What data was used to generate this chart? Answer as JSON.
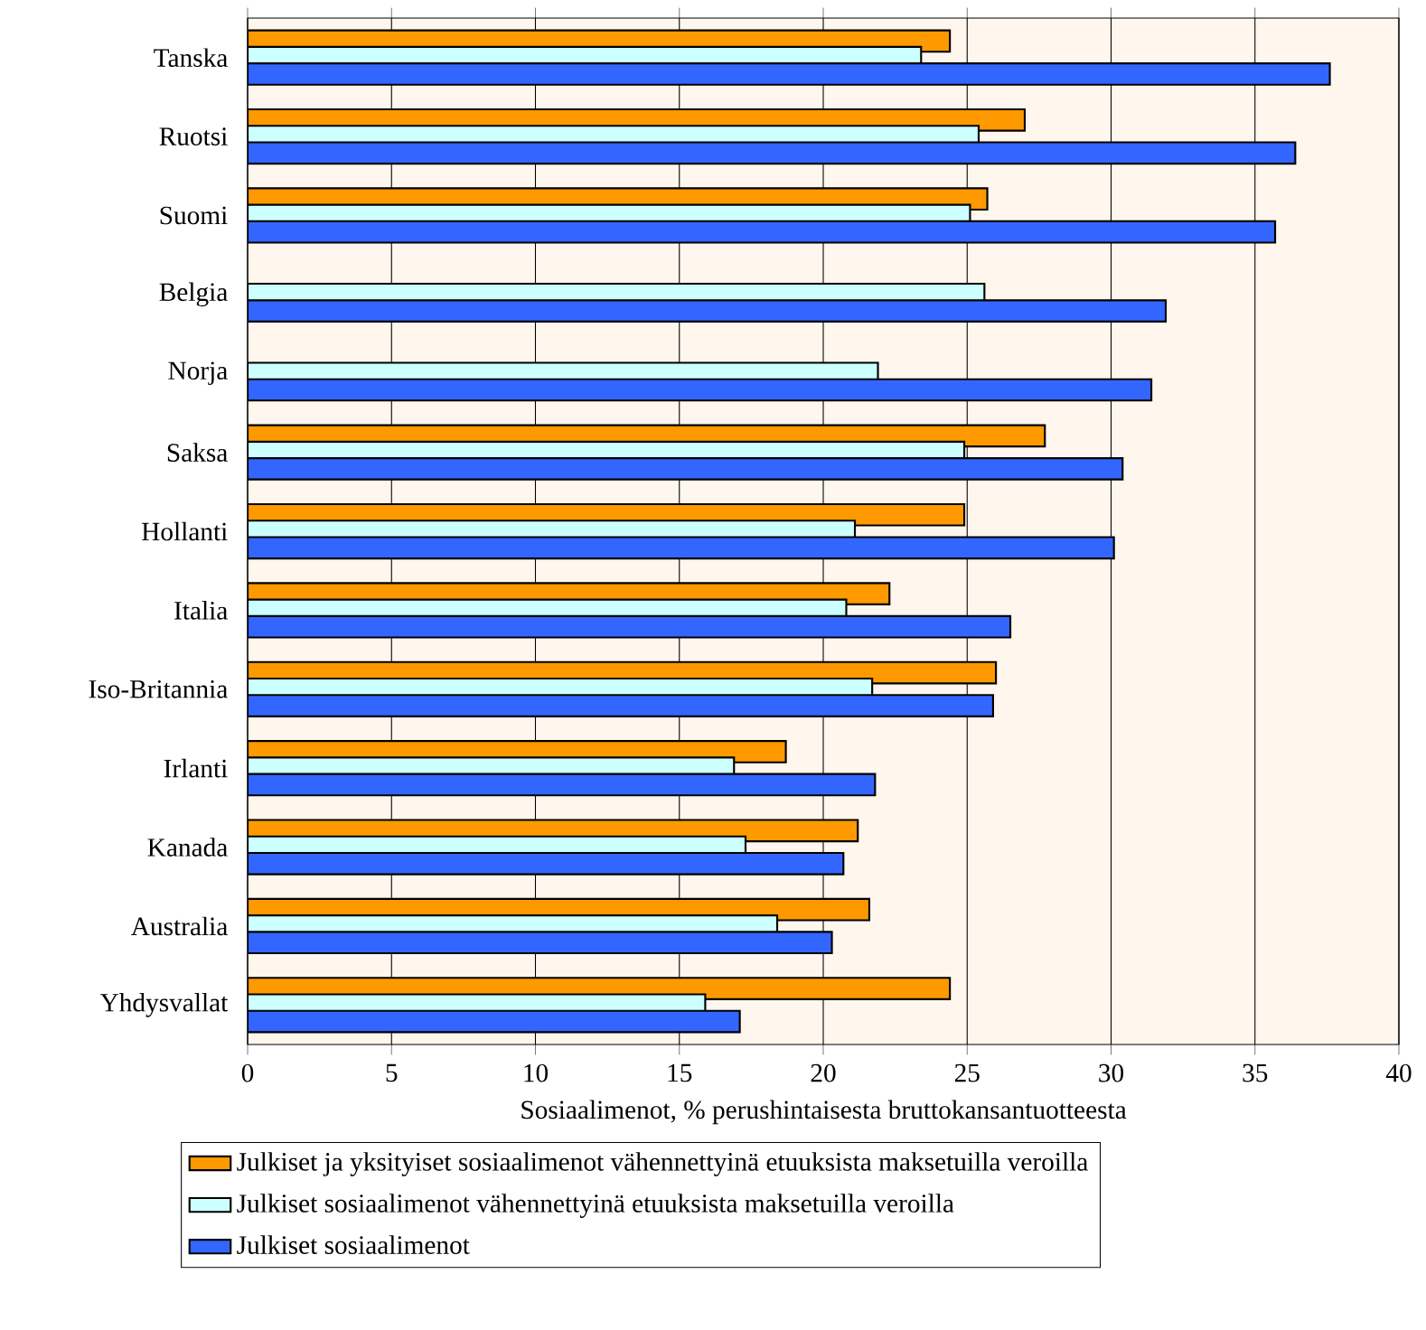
{
  "chart_data": {
    "type": "bar",
    "orientation": "horizontal",
    "xlabel": "Sosiaalimenot, % perushintaisesta bruttokansantuotteesta",
    "categories": [
      "Tanska",
      "Ruotsi",
      "Suomi",
      "Belgia",
      "Norja",
      "Saksa",
      "Hollanti",
      "Italia",
      "Iso-Britannia",
      "Irlanti",
      "Kanada",
      "Australia",
      "Yhdysvallat"
    ],
    "series": [
      {
        "name": "Julkiset ja yksityiset sosiaalimenot vähennettyinä etuuksista maksetuilla veroilla",
        "color": "#ff9900",
        "values": [
          24.4,
          27.0,
          25.7,
          null,
          null,
          27.7,
          24.9,
          22.3,
          26.0,
          18.7,
          21.2,
          21.6,
          24.4
        ]
      },
      {
        "name": "Julkiset sosiaalimenot vähennettyinä etuuksista maksetuilla veroilla",
        "color": "#ccffff",
        "values": [
          23.4,
          25.4,
          25.1,
          25.6,
          21.9,
          24.9,
          21.1,
          20.8,
          21.7,
          16.9,
          17.3,
          18.4,
          15.9
        ]
      },
      {
        "name": "Julkiset sosiaalimenot",
        "color": "#3366ff",
        "values": [
          37.6,
          36.4,
          35.7,
          31.9,
          31.4,
          30.4,
          30.1,
          26.5,
          25.9,
          21.8,
          20.7,
          20.3,
          17.1
        ]
      }
    ],
    "xlim": [
      0,
      40
    ],
    "xticks": [
      0,
      5,
      10,
      15,
      20,
      25,
      30,
      35,
      40
    ],
    "grid": "x",
    "legend": "bottom"
  }
}
